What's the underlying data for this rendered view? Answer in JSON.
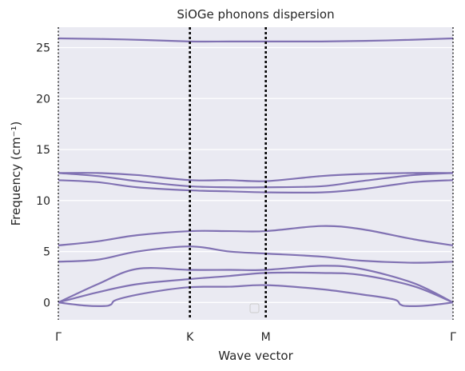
{
  "chart_data": {
    "type": "line",
    "title": "SiOGe phonons dispersion",
    "xlabel": "Wave vector",
    "ylabel": "Frequency (cm⁻¹)",
    "ylim": [
      -1.7,
      27.0
    ],
    "xlim": [
      0.0,
      3.0
    ],
    "grid": "y",
    "legend": "bottom-center (empty)",
    "colors": {
      "plot_bg": "#eaeaf2",
      "grid": "#ffffff",
      "line": "#8172b3",
      "text": "#262626",
      "vline": "#000000"
    },
    "yticks": [
      0,
      5,
      10,
      15,
      20,
      25
    ],
    "xticks": [
      {
        "label": "Γ",
        "x": 0.0
      },
      {
        "label": "K",
        "x": 1.0
      },
      {
        "label": "M",
        "x": 1.577
      },
      {
        "label": "Γ",
        "x": 3.0
      }
    ],
    "series": [
      {
        "x": [
          0,
          0.2,
          0.35,
          0.4,
          0.45,
          0.7,
          1.0,
          1.3,
          1.577,
          2.0,
          2.3,
          2.55,
          2.6,
          2.65,
          2.8,
          3.0
        ],
        "y": [
          0,
          -0.3,
          -0.35,
          -0.2,
          0.3,
          1.0,
          1.5,
          1.55,
          1.7,
          1.3,
          0.8,
          0.3,
          -0.2,
          -0.35,
          -0.3,
          0
        ]
      },
      {
        "x": [
          0,
          0.3,
          0.6,
          1.0,
          1.3,
          1.577,
          2.0,
          2.3,
          2.7,
          3.0
        ],
        "y": [
          0,
          1.0,
          1.8,
          2.3,
          2.6,
          2.9,
          2.9,
          2.7,
          1.6,
          0
        ]
      },
      {
        "x": [
          0,
          0.3,
          0.6,
          1.0,
          1.3,
          1.577,
          2.0,
          2.3,
          2.7,
          3.0
        ],
        "y": [
          0,
          1.8,
          3.3,
          3.2,
          3.2,
          3.2,
          3.6,
          3.3,
          1.9,
          0
        ]
      },
      {
        "x": [
          0,
          0.3,
          0.6,
          1.0,
          1.3,
          1.577,
          2.0,
          2.3,
          2.7,
          3.0
        ],
        "y": [
          4.0,
          4.2,
          5.0,
          5.5,
          5.0,
          4.8,
          4.5,
          4.1,
          3.9,
          4.0
        ]
      },
      {
        "x": [
          0,
          0.3,
          0.6,
          1.0,
          1.3,
          1.577,
          2.0,
          2.3,
          2.7,
          3.0
        ],
        "y": [
          5.6,
          6.0,
          6.6,
          7.0,
          7.0,
          7.0,
          7.5,
          7.2,
          6.2,
          5.6
        ]
      },
      {
        "x": [
          0,
          0.3,
          0.6,
          1.0,
          1.3,
          1.577,
          2.0,
          2.3,
          2.7,
          3.0
        ],
        "y": [
          12.0,
          11.8,
          11.3,
          11.0,
          10.9,
          10.8,
          10.8,
          11.1,
          11.8,
          12.0
        ]
      },
      {
        "x": [
          0,
          0.3,
          0.6,
          1.0,
          1.3,
          1.577,
          2.0,
          2.3,
          2.7,
          3.0
        ],
        "y": [
          12.7,
          12.4,
          11.9,
          11.4,
          11.3,
          11.3,
          11.4,
          11.9,
          12.5,
          12.7
        ]
      },
      {
        "x": [
          0,
          0.3,
          0.6,
          1.0,
          1.3,
          1.577,
          2.0,
          2.3,
          2.7,
          3.0
        ],
        "y": [
          12.7,
          12.7,
          12.5,
          12.0,
          12.0,
          11.9,
          12.4,
          12.6,
          12.7,
          12.7
        ]
      },
      {
        "x": [
          0,
          0.5,
          1.0,
          1.3,
          1.577,
          2.0,
          2.5,
          3.0
        ],
        "y": [
          25.9,
          25.8,
          25.6,
          25.6,
          25.6,
          25.6,
          25.7,
          25.9
        ]
      }
    ]
  }
}
